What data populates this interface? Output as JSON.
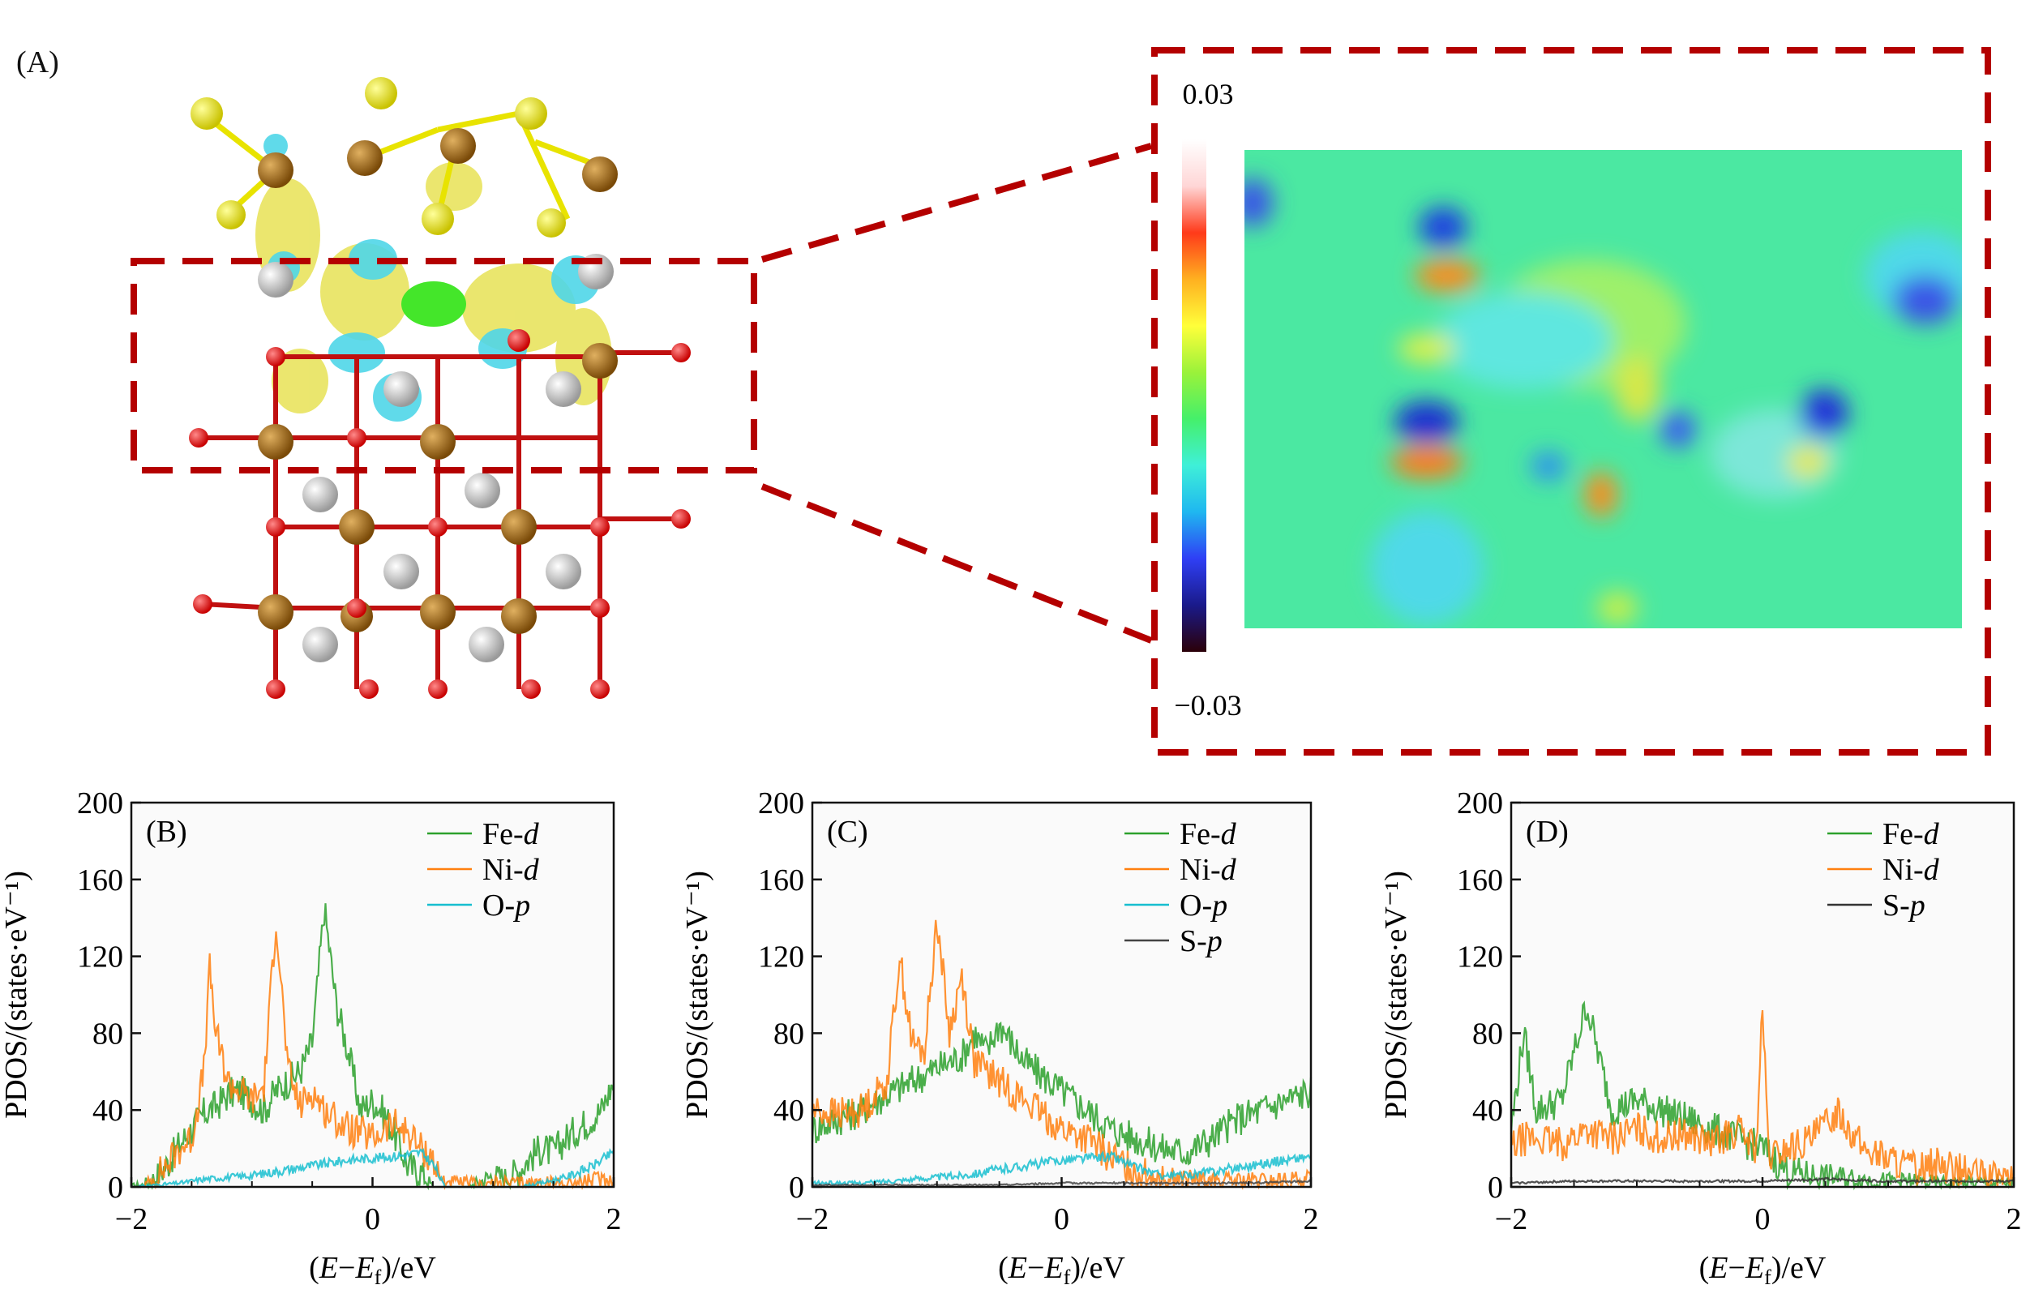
{
  "figure": {
    "panel_a_label": "(A)",
    "colorbar": {
      "max_label": "0.03",
      "min_label": "−0.03",
      "stops": [
        "#2b0008",
        "#1a1a8a",
        "#2f3ff5",
        "#1fb7f0",
        "#3ff0d8",
        "#45f06a",
        "#9af23a",
        "#ffff3a",
        "#ffb020",
        "#ff3a1a",
        "#ffd6d6",
        "#ffffff"
      ]
    },
    "colors": {
      "fe": "#2ca02c",
      "ni": "#ff7f0e",
      "o": "#17becf",
      "s": "#444444",
      "frame": "#b40000"
    }
  },
  "chart_data": [
    {
      "panel": "(B)",
      "type": "line",
      "xlabel": "(E−Ef)/eV",
      "ylabel": "PDOS/(states·eV⁻¹)",
      "xlim": [
        -2,
        2
      ],
      "ylim": [
        0,
        200
      ],
      "xticks": [
        "−2",
        "0",
        "2"
      ],
      "yticks": [
        "0",
        "40",
        "80",
        "120",
        "160",
        "200"
      ],
      "legend": [
        "Fe-d",
        "Ni-d",
        "O-p"
      ],
      "series": [
        {
          "name": "Fe-d",
          "color": "#2ca02c",
          "x": [
            -2.0,
            -1.9,
            -1.8,
            -1.7,
            -1.6,
            -1.5,
            -1.4,
            -1.3,
            -1.2,
            -1.1,
            -1.0,
            -0.9,
            -0.8,
            -0.7,
            -0.6,
            -0.5,
            -0.4,
            -0.3,
            -0.2,
            -0.1,
            0.0,
            0.1,
            0.2,
            0.3,
            0.4,
            0.5,
            0.55,
            0.6,
            0.7,
            0.8,
            0.9,
            1.0,
            1.1,
            1.2,
            1.3,
            1.4,
            1.5,
            1.6,
            1.7,
            1.8,
            1.9,
            2.0
          ],
          "y": [
            0,
            1,
            5,
            12,
            22,
            30,
            38,
            42,
            48,
            50,
            45,
            40,
            50,
            55,
            60,
            75,
            145,
            95,
            70,
            40,
            45,
            38,
            25,
            10,
            8,
            0,
            0,
            0,
            0,
            0,
            3,
            6,
            5,
            8,
            15,
            20,
            18,
            25,
            30,
            35,
            40,
            55
          ]
        },
        {
          "name": "Ni-d",
          "color": "#ff7f0e",
          "x": [
            -2.0,
            -1.9,
            -1.8,
            -1.7,
            -1.6,
            -1.5,
            -1.4,
            -1.35,
            -1.3,
            -1.2,
            -1.1,
            -1.0,
            -0.9,
            -0.8,
            -0.7,
            -0.6,
            -0.5,
            -0.4,
            -0.3,
            -0.2,
            -0.1,
            0.0,
            0.1,
            0.2,
            0.3,
            0.4,
            0.5,
            0.55,
            0.6,
            0.7,
            0.8,
            0.9,
            1.0,
            1.2,
            1.4,
            1.6,
            1.8,
            2.0
          ],
          "y": [
            0,
            0,
            5,
            12,
            20,
            25,
            60,
            113,
            80,
            55,
            50,
            45,
            52,
            140,
            60,
            42,
            50,
            40,
            35,
            30,
            28,
            25,
            30,
            32,
            28,
            20,
            15,
            5,
            3,
            2,
            2,
            1,
            2,
            2,
            2,
            2,
            3,
            4
          ]
        },
        {
          "name": "O-p",
          "color": "#17becf",
          "x": [
            -2.0,
            -1.8,
            -1.6,
            -1.4,
            -1.2,
            -1.0,
            -0.8,
            -0.6,
            -0.4,
            -0.2,
            0.0,
            0.2,
            0.4,
            0.5,
            0.6,
            0.8,
            1.0,
            1.2,
            1.4,
            1.6,
            1.8,
            2.0
          ],
          "y": [
            0,
            1,
            2,
            4,
            5,
            6,
            8,
            10,
            12,
            14,
            15,
            16,
            18,
            12,
            0,
            0,
            0,
            0,
            2,
            5,
            10,
            18
          ]
        }
      ]
    },
    {
      "panel": "(C)",
      "type": "line",
      "xlabel": "(E−Ef)/eV",
      "ylabel": "PDOS/(states·eV⁻¹)",
      "xlim": [
        -2,
        2
      ],
      "ylim": [
        0,
        200
      ],
      "xticks": [
        "−2",
        "0",
        "2"
      ],
      "yticks": [
        "0",
        "40",
        "80",
        "120",
        "160",
        "200"
      ],
      "legend": [
        "Fe-d",
        "Ni-d",
        "O-p",
        "S-p"
      ],
      "series": [
        {
          "name": "Fe-d",
          "color": "#2ca02c",
          "x": [
            -2.0,
            -1.8,
            -1.6,
            -1.4,
            -1.2,
            -1.0,
            -0.8,
            -0.7,
            -0.6,
            -0.5,
            -0.4,
            -0.3,
            -0.2,
            -0.1,
            0.0,
            0.1,
            0.2,
            0.4,
            0.6,
            0.8,
            1.0,
            1.2,
            1.4,
            1.6,
            1.8,
            2.0
          ],
          "y": [
            30,
            35,
            40,
            48,
            55,
            62,
            68,
            80,
            70,
            85,
            75,
            65,
            60,
            55,
            50,
            45,
            40,
            30,
            25,
            20,
            18,
            25,
            35,
            40,
            45,
            50
          ]
        },
        {
          "name": "Ni-d",
          "color": "#ff7f0e",
          "x": [
            -2.0,
            -1.8,
            -1.6,
            -1.4,
            -1.3,
            -1.2,
            -1.1,
            -1.0,
            -0.9,
            -0.8,
            -0.7,
            -0.6,
            -0.5,
            -0.4,
            -0.3,
            -0.2,
            -0.1,
            0.0,
            0.2,
            0.4,
            0.6,
            0.8,
            1.0,
            1.2,
            1.4,
            1.6,
            1.8,
            2.0
          ],
          "y": [
            40,
            38,
            40,
            55,
            120,
            75,
            70,
            140,
            80,
            110,
            65,
            60,
            55,
            50,
            45,
            40,
            35,
            30,
            25,
            15,
            8,
            5,
            4,
            3,
            3,
            3,
            3,
            4
          ]
        },
        {
          "name": "O-p",
          "color": "#17becf",
          "x": [
            -2.0,
            -1.8,
            -1.6,
            -1.4,
            -1.2,
            -1.0,
            -0.8,
            -0.6,
            -0.4,
            -0.2,
            0.0,
            0.2,
            0.4,
            0.6,
            0.8,
            1.0,
            1.2,
            1.4,
            1.6,
            1.8,
            2.0
          ],
          "y": [
            2,
            2,
            2,
            3,
            4,
            5,
            6,
            8,
            10,
            12,
            14,
            15,
            16,
            10,
            6,
            6,
            8,
            10,
            12,
            14,
            16
          ]
        },
        {
          "name": "S-p",
          "color": "#444444",
          "x": [
            -2.0,
            -1.5,
            -1.0,
            -0.5,
            0.0,
            0.5,
            1.0,
            1.5,
            2.0
          ],
          "y": [
            1,
            1,
            1,
            1,
            2,
            2,
            2,
            2,
            3
          ]
        }
      ]
    },
    {
      "panel": "(D)",
      "type": "line",
      "xlabel": "(E−Ef)/eV",
      "ylabel": "PDOS/(states·eV⁻¹)",
      "xlim": [
        -2,
        2
      ],
      "ylim": [
        0,
        200
      ],
      "xticks": [
        "−2",
        "0",
        "2"
      ],
      "yticks": [
        "0",
        "40",
        "80",
        "120",
        "160",
        "200"
      ],
      "legend": [
        "Fe-d",
        "Ni-d",
        "S-p"
      ],
      "series": [
        {
          "name": "Fe-d",
          "color": "#2ca02c",
          "x": [
            -2.0,
            -1.9,
            -1.8,
            -1.6,
            -1.4,
            -1.2,
            -1.0,
            -0.8,
            -0.6,
            -0.4,
            -0.2,
            0.0,
            0.2,
            0.4,
            0.6,
            0.8,
            1.0,
            1.2,
            1.4,
            1.6,
            1.8,
            2.0
          ],
          "y": [
            30,
            80,
            40,
            45,
            95,
            40,
            45,
            40,
            35,
            30,
            25,
            20,
            8,
            6,
            5,
            4,
            3,
            3,
            2,
            2,
            2,
            2
          ]
        },
        {
          "name": "Ni-d",
          "color": "#ff7f0e",
          "x": [
            -2.0,
            -1.9,
            -1.8,
            -1.6,
            -1.4,
            -1.2,
            -1.0,
            -0.8,
            -0.6,
            -0.4,
            -0.2,
            -0.05,
            0.0,
            0.05,
            0.2,
            0.4,
            0.6,
            0.8,
            1.0,
            1.2,
            1.4,
            1.6,
            1.8,
            2.0
          ],
          "y": [
            20,
            25,
            25,
            22,
            30,
            25,
            30,
            25,
            28,
            22,
            30,
            20,
            92,
            15,
            20,
            25,
            40,
            20,
            15,
            10,
            12,
            8,
            6,
            5
          ]
        },
        {
          "name": "S-p",
          "color": "#333333",
          "x": [
            -2.0,
            -1.5,
            -1.0,
            -0.5,
            0.0,
            0.5,
            1.0,
            1.5,
            2.0
          ],
          "y": [
            2,
            3,
            3,
            3,
            3,
            4,
            3,
            3,
            3
          ]
        }
      ]
    }
  ]
}
